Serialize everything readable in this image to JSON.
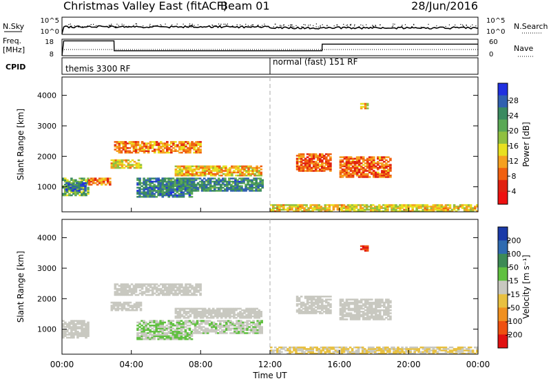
{
  "header": {
    "title": "Christmas Valley East (fitACF)",
    "beam": "Beam 01",
    "date": "28/Jun/2016"
  },
  "aux_panels": {
    "nsky_label": "N.Sky",
    "noise_ticks": [
      "10^5",
      "10^0"
    ],
    "nsearch_label": "N.Search",
    "freq_label_1": "Freq.",
    "freq_label_2": "[MHz]",
    "freq_ticks": [
      "18",
      "8"
    ],
    "nave_ticks": [
      "60",
      "0"
    ],
    "nave_label": "Nave",
    "cpid_label": "CPID",
    "cpid_1": "themis 3300 RF",
    "cpid_2": "normal (fast) 151 RF"
  },
  "axes": {
    "y_label": "Slant Range [km]",
    "y_ticks": [
      "4000",
      "3000",
      "2000",
      "1000"
    ],
    "x_ticks": [
      "00:00",
      "04:00",
      "08:00",
      "12:00",
      "16:00",
      "20:00",
      "00:00"
    ],
    "x_label": "Time UT"
  },
  "colorbars": {
    "power": {
      "label": "Power [dB]",
      "ticks": [
        "28",
        "24",
        "20",
        "16",
        "12",
        "8",
        "4"
      ],
      "colors": [
        "#2030e0",
        "#3060b0",
        "#3a8a60",
        "#5aa855",
        "#90c040",
        "#e8e020",
        "#f5a020",
        "#f06010",
        "#e02010",
        "#ee1010"
      ]
    },
    "velocity": {
      "label": "Velocity [m s⁻¹]",
      "ticks": [
        "200",
        "100",
        "50",
        "15",
        "-15",
        "-50",
        "-100",
        "-200"
      ],
      "colors": [
        "#1a3aa8",
        "#2e6ab0",
        "#3c8a55",
        "#60c040",
        "#c8c8c0",
        "#e8c040",
        "#f09020",
        "#ee5010",
        "#e01010"
      ]
    }
  },
  "chart_data": [
    {
      "type": "line",
      "x_unit": "hours UT",
      "x": [
        0,
        0.1,
        3,
        3.01,
        15,
        15.01,
        24
      ],
      "series": [
        {
          "name": "Freq.",
          "values": [
            8,
            17,
            17,
            11,
            11,
            15,
            15
          ]
        }
      ],
      "xlim": [
        0,
        24
      ],
      "ylim": [
        8,
        18
      ]
    },
    {
      "type": "heatmap",
      "title": "Christmas Valley East (fitACF)",
      "xlabel": "Time UT",
      "ylabel": "Slant Range [km]",
      "colorbar_label": "Power [dB]",
      "x_unit": "hours UT",
      "xlim": [
        0,
        24
      ],
      "ylim": [
        180,
        4600
      ],
      "zlim": [
        0,
        32
      ],
      "regions": [
        {
          "t": [
            0.0,
            1.5
          ],
          "r": [
            700,
            1300
          ],
          "mean": 20
        },
        {
          "t": [
            0.2,
            1.3
          ],
          "r": [
            850,
            1150
          ],
          "mean": 27
        },
        {
          "t": [
            1.5,
            2.8
          ],
          "r": [
            1050,
            1300
          ],
          "mean": 9
        },
        {
          "t": [
            2.8,
            4.5
          ],
          "r": [
            1600,
            1900
          ],
          "mean": 14
        },
        {
          "t": [
            4.3,
            7.5
          ],
          "r": [
            650,
            1300
          ],
          "mean": 25
        },
        {
          "t": [
            5.5,
            11.5
          ],
          "r": [
            850,
            1300
          ],
          "mean": 24
        },
        {
          "t": [
            6.5,
            11.5
          ],
          "r": [
            1350,
            1700
          ],
          "mean": 12
        },
        {
          "t": [
            3.0,
            8.0
          ],
          "r": [
            2100,
            2500
          ],
          "mean": 10
        },
        {
          "t": [
            12.0,
            24.0
          ],
          "r": [
            180,
            420
          ],
          "mean": 14
        },
        {
          "t": [
            13.5,
            15.5
          ],
          "r": [
            1500,
            2100
          ],
          "mean": 8
        },
        {
          "t": [
            16.0,
            19.0
          ],
          "r": [
            1300,
            2000
          ],
          "mean": 8
        },
        {
          "t": [
            17.2,
            17.6
          ],
          "r": [
            3550,
            3750
          ],
          "mean": 14
        }
      ]
    },
    {
      "type": "heatmap",
      "xlabel": "Time UT",
      "ylabel": "Slant Range [km]",
      "colorbar_label": "Velocity [m s⁻¹]",
      "x_unit": "hours UT",
      "xlim": [
        0,
        24
      ],
      "ylim": [
        180,
        4600
      ],
      "zlim": [
        -250,
        250
      ],
      "regions": [
        {
          "t": [
            0.0,
            1.5
          ],
          "r": [
            700,
            1300
          ],
          "mean": 0
        },
        {
          "t": [
            2.8,
            4.5
          ],
          "r": [
            1600,
            1900
          ],
          "mean": 0
        },
        {
          "t": [
            4.3,
            7.5
          ],
          "r": [
            650,
            1300
          ],
          "mean": 30
        },
        {
          "t": [
            7.5,
            11.5
          ],
          "r": [
            850,
            1300
          ],
          "mean": 20
        },
        {
          "t": [
            6.5,
            11.5
          ],
          "r": [
            1350,
            1700
          ],
          "mean": 0
        },
        {
          "t": [
            3.0,
            8.0
          ],
          "r": [
            2100,
            2500
          ],
          "mean": 0
        },
        {
          "t": [
            12.0,
            24.0
          ],
          "r": [
            180,
            420
          ],
          "mean": -30
        },
        {
          "t": [
            13.5,
            15.5
          ],
          "r": [
            1500,
            2100
          ],
          "mean": 0
        },
        {
          "t": [
            16.0,
            19.0
          ],
          "r": [
            1300,
            2000
          ],
          "mean": 0
        },
        {
          "t": [
            17.2,
            17.6
          ],
          "r": [
            3550,
            3750
          ],
          "mean": -200
        }
      ]
    }
  ]
}
